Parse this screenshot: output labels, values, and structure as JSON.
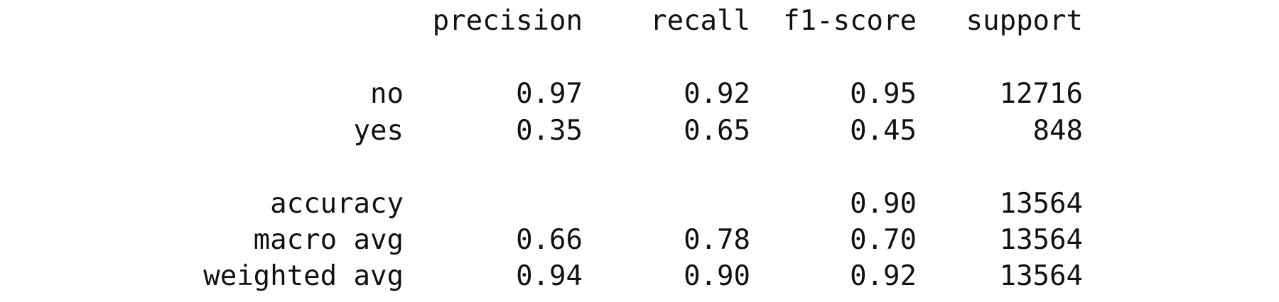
{
  "header": {
    "precision": "precision",
    "recall": "recall",
    "f1_score": "f1-score",
    "support": "support"
  },
  "rows": [
    {
      "label": "no",
      "precision": "0.97",
      "recall": "0.92",
      "f1_score": "0.95",
      "support": "12716"
    },
    {
      "label": "yes",
      "precision": "0.35",
      "recall": "0.65",
      "f1_score": "0.45",
      "support": "848"
    },
    {
      "label": "accuracy",
      "precision": "",
      "recall": "",
      "f1_score": "0.90",
      "support": "13564"
    },
    {
      "label": "macro avg",
      "precision": "0.66",
      "recall": "0.78",
      "f1_score": "0.70",
      "support": "13564"
    },
    {
      "label": "weighted avg",
      "precision": "0.94",
      "recall": "0.90",
      "f1_score": "0.92",
      "support": "13564"
    }
  ]
}
